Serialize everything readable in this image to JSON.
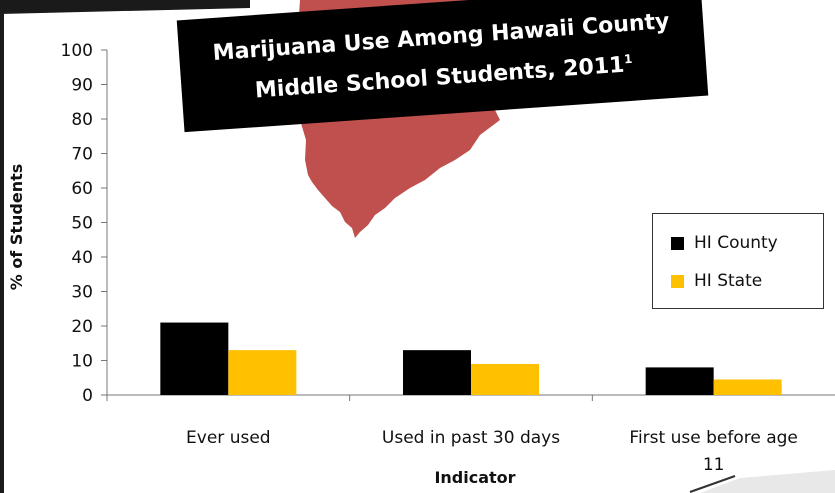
{
  "chart_data": {
    "type": "bar",
    "title_line1": "Marijuana Use Among Hawaii County",
    "title_line2": "Middle School Students, 2011",
    "title_superscript": "1",
    "xlabel": "Indicator",
    "ylabel": "% of Students",
    "ylim": [
      0,
      100
    ],
    "yticks": [
      0,
      10,
      20,
      30,
      40,
      50,
      60,
      70,
      80,
      90,
      100
    ],
    "categories": [
      {
        "line1": "Ever used",
        "line2": ""
      },
      {
        "line1": "Used in past 30 days",
        "line2": ""
      },
      {
        "line1": "First use before age",
        "line2": "11"
      }
    ],
    "series": [
      {
        "name": "HI County",
        "color": "#000000",
        "values": [
          21,
          13,
          8
        ]
      },
      {
        "name": "HI State",
        "color": "#FFC000",
        "values": [
          13,
          9,
          4.5
        ]
      }
    ],
    "legend_position": "right",
    "grid": false
  },
  "decoration": {
    "island_color": "#C0504D"
  }
}
